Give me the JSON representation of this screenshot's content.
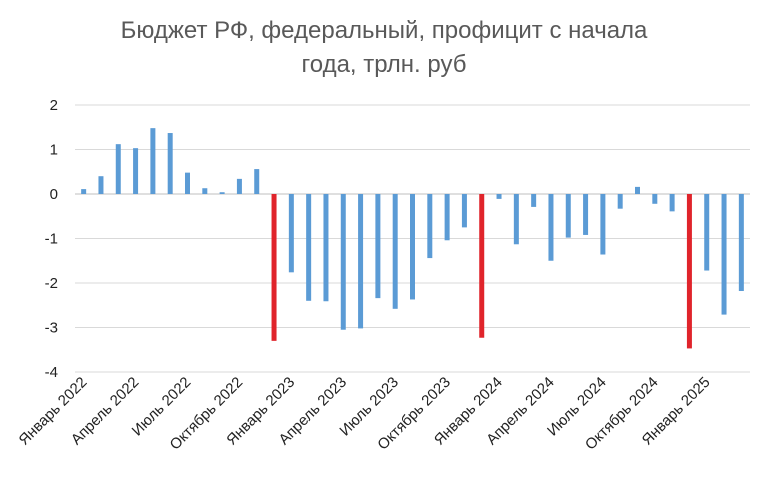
{
  "chart_data": {
    "type": "bar",
    "title_lines": [
      "Бюджет РФ, федеральный,  профицит с начала",
      "года, трлн. руб"
    ],
    "xlabel": "",
    "ylabel": "",
    "ylim": [
      -4,
      2
    ],
    "yticks": [
      2,
      1,
      0,
      -1,
      -2,
      -3,
      -4
    ],
    "grid": true,
    "legend": "none",
    "colors": {
      "normal": "#5b9bd5",
      "highlight": "#e0242b",
      "grid": "#d9d9d9",
      "axis": "#bfbfbf"
    },
    "x_tick_labels": [
      {
        "label": "Январь 2022",
        "index": 0
      },
      {
        "label": "Апрель 2022",
        "index": 3
      },
      {
        "label": "Июль 2022",
        "index": 6
      },
      {
        "label": "Октябрь 2022",
        "index": 9
      },
      {
        "label": "Январь 2023",
        "index": 12
      },
      {
        "label": "Апрель 2023",
        "index": 15
      },
      {
        "label": "Июль 2023",
        "index": 18
      },
      {
        "label": "Октябрь 2023",
        "index": 21
      },
      {
        "label": "Январь 2024",
        "index": 24
      },
      {
        "label": "Апрель 2024",
        "index": 27
      },
      {
        "label": "Июль 2024",
        "index": 30
      },
      {
        "label": "Октябрь 2024",
        "index": 33
      },
      {
        "label": "Январь 2025",
        "index": 36
      }
    ],
    "values": [
      0.11,
      0.4,
      1.12,
      1.03,
      1.48,
      1.37,
      0.48,
      0.13,
      0.04,
      0.34,
      0.56,
      -3.3,
      -1.76,
      -2.4,
      -2.41,
      -3.05,
      -3.02,
      -2.34,
      -2.58,
      -2.37,
      -1.44,
      -1.04,
      -0.75,
      -3.23,
      -0.11,
      -1.13,
      -0.29,
      -1.5,
      -0.98,
      -0.92,
      -1.36,
      -0.33,
      0.16,
      -0.22,
      -0.39,
      -3.47,
      -1.72,
      -2.71,
      -2.18
    ],
    "highlight_indices": [
      11,
      23,
      35
    ]
  }
}
